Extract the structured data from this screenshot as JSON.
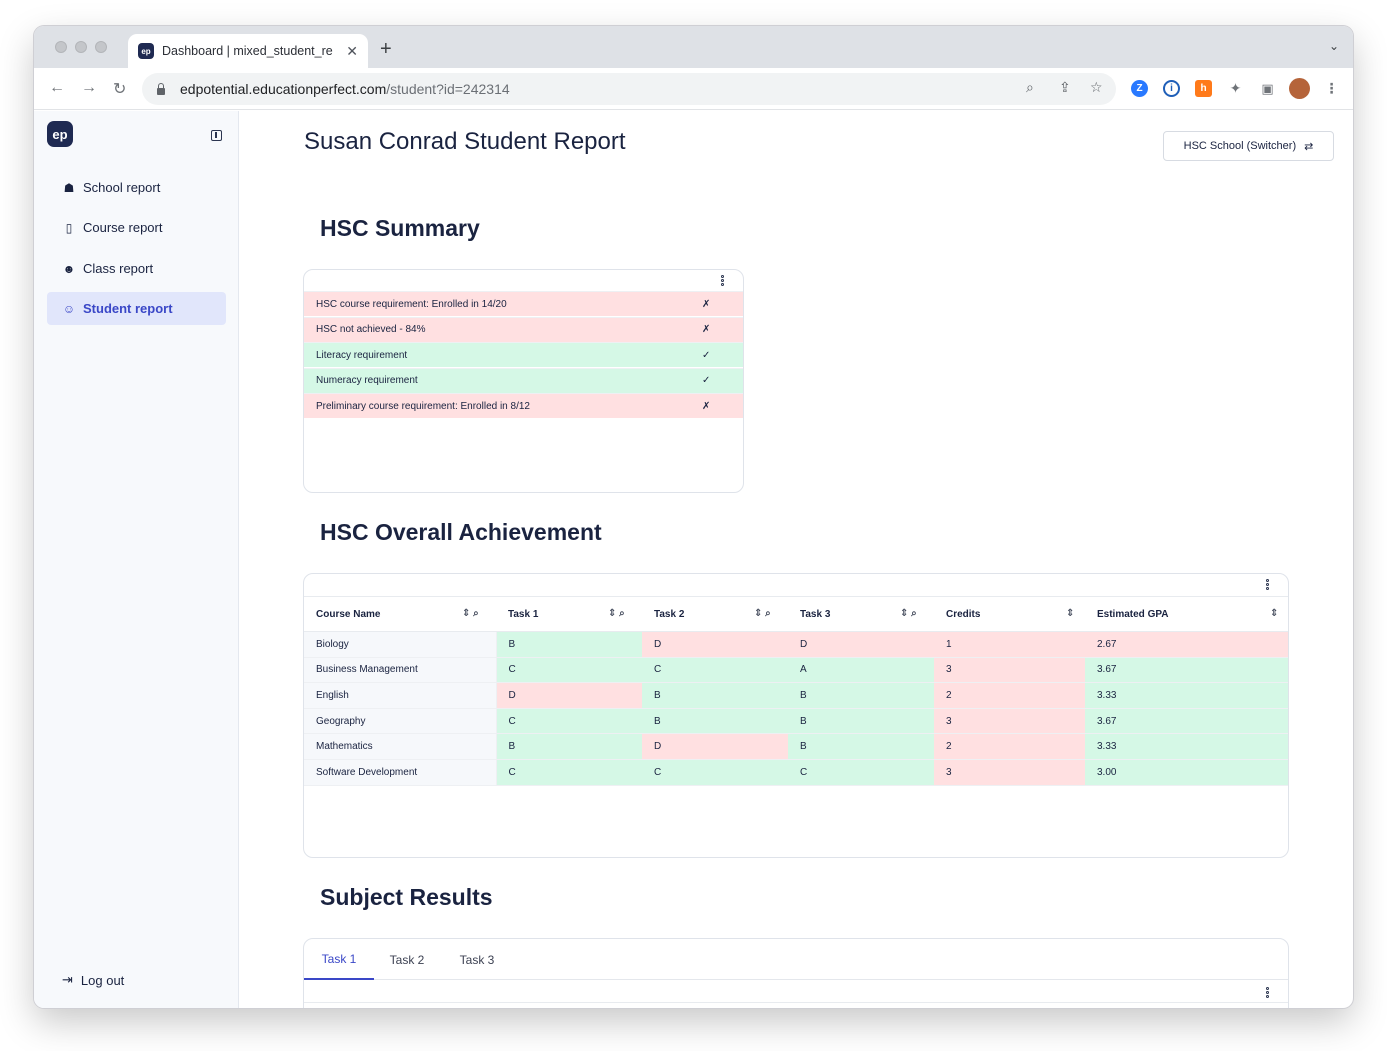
{
  "browser": {
    "tab_title": "Dashboard | mixed_student_re",
    "tab_favicon": "ep",
    "url_host": "edpotential.educationperfect.com",
    "url_path": "/student?id=242314"
  },
  "sidebar": {
    "logo": "ep",
    "items": [
      {
        "label": "School report",
        "icon": "school-icon",
        "glyph": "☗"
      },
      {
        "label": "Course report",
        "icon": "book-icon",
        "glyph": "▯"
      },
      {
        "label": "Class report",
        "icon": "users-icon",
        "glyph": "☻"
      },
      {
        "label": "Student report",
        "icon": "student-icon",
        "glyph": "☺"
      }
    ],
    "logout_label": "Log out"
  },
  "page": {
    "title": "Susan Conrad Student Report",
    "switcher_label": "HSC School (Switcher)",
    "switcher_glyph": "⇄"
  },
  "summary": {
    "title": "HSC Summary",
    "rows": [
      {
        "text": "HSC course requirement: Enrolled in 14/20",
        "mark": "✗",
        "status": "fail"
      },
      {
        "text": "HSC not achieved - 84%",
        "mark": "✗",
        "status": "fail"
      },
      {
        "text": "Literacy requirement",
        "mark": "✓",
        "status": "pass"
      },
      {
        "text": "Numeracy requirement",
        "mark": "✓",
        "status": "pass"
      },
      {
        "text": "Preliminary course requirement: Enrolled in 8/12",
        "mark": "✗",
        "status": "fail"
      }
    ]
  },
  "achievement": {
    "title": "HSC Overall Achievement",
    "columns": [
      "Course Name",
      "Task 1",
      "Task 2",
      "Task 3",
      "Credits",
      "Estimated GPA"
    ],
    "rows": [
      {
        "course": "Biology",
        "task1": "B",
        "task2": "D",
        "task3": "D",
        "credits": "1",
        "gpa": "2.67",
        "s": [
          "g",
          "r",
          "r",
          "r",
          "r"
        ]
      },
      {
        "course": "Business Management",
        "task1": "C",
        "task2": "C",
        "task3": "A",
        "credits": "3",
        "gpa": "3.67",
        "s": [
          "g",
          "g",
          "g",
          "r",
          "g"
        ]
      },
      {
        "course": "English",
        "task1": "D",
        "task2": "B",
        "task3": "B",
        "credits": "2",
        "gpa": "3.33",
        "s": [
          "r",
          "g",
          "g",
          "r",
          "g"
        ]
      },
      {
        "course": "Geography",
        "task1": "C",
        "task2": "B",
        "task3": "B",
        "credits": "3",
        "gpa": "3.67",
        "s": [
          "g",
          "g",
          "g",
          "r",
          "g"
        ]
      },
      {
        "course": "Mathematics",
        "task1": "B",
        "task2": "D",
        "task3": "B",
        "credits": "2",
        "gpa": "3.33",
        "s": [
          "g",
          "r",
          "g",
          "r",
          "g"
        ]
      },
      {
        "course": "Software Development",
        "task1": "C",
        "task2": "C",
        "task3": "C",
        "credits": "3",
        "gpa": "3.00",
        "s": [
          "g",
          "g",
          "g",
          "r",
          "g"
        ]
      }
    ]
  },
  "subject_results": {
    "title": "Subject Results",
    "tabs": [
      "Task 1",
      "Task 2",
      "Task 3"
    ],
    "active_tab": "Task 1"
  },
  "colors": {
    "pass": "#d5f8e6",
    "fail": "#ffe0e1",
    "accent": "#3a47c7",
    "navy": "#1f2a52"
  }
}
